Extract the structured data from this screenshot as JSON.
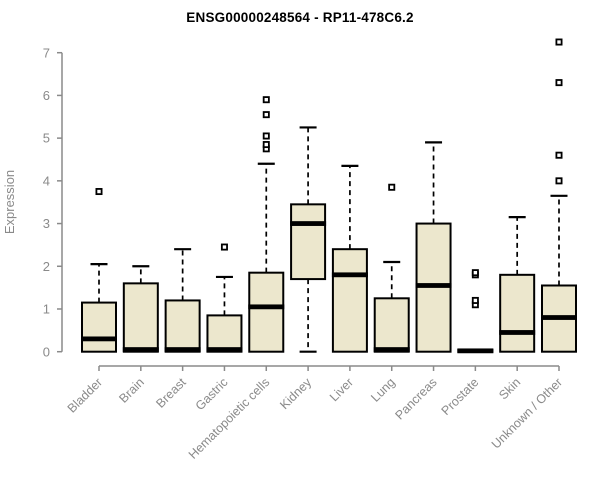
{
  "title": "ENSG00000248564 - RP11-478C6.2",
  "chart_data": {
    "type": "boxplot",
    "title": "ENSG00000248564 - RP11-478C6.2",
    "xlabel": "",
    "ylabel": "Expression",
    "ylim": [
      0,
      7
    ],
    "yticks": [
      0,
      1,
      2,
      3,
      4,
      5,
      6,
      7
    ],
    "grid": false,
    "legend": "none",
    "categories": [
      "Bladder",
      "Brain",
      "Breast",
      "Gastric",
      "Hematopoietic cells",
      "Kidney",
      "Liver",
      "Lung",
      "Pancreas",
      "Prostate",
      "Skin",
      "Unknown / Other"
    ],
    "series": [
      {
        "name": "Bladder",
        "whisker_low": 0,
        "q1": 0,
        "median": 0.3,
        "q3": 1.15,
        "whisker_high": 2.05,
        "outliers": [
          3.75
        ]
      },
      {
        "name": "Brain",
        "whisker_low": 0,
        "q1": 0,
        "median": 0.05,
        "q3": 1.6,
        "whisker_high": 2.0,
        "outliers": []
      },
      {
        "name": "Breast",
        "whisker_low": 0,
        "q1": 0,
        "median": 0.05,
        "q3": 1.2,
        "whisker_high": 2.4,
        "outliers": []
      },
      {
        "name": "Gastric",
        "whisker_low": 0,
        "q1": 0,
        "median": 0.05,
        "q3": 0.85,
        "whisker_high": 1.75,
        "outliers": [
          2.45
        ]
      },
      {
        "name": "Hematopoietic cells",
        "whisker_low": 0,
        "q1": 0,
        "median": 1.05,
        "q3": 1.85,
        "whisker_high": 4.4,
        "outliers": [
          4.75,
          4.85,
          5.05,
          5.55,
          5.9
        ]
      },
      {
        "name": "Kidney",
        "whisker_low": 0,
        "q1": 1.7,
        "median": 3.0,
        "q3": 3.45,
        "whisker_high": 5.25,
        "outliers": []
      },
      {
        "name": "Liver",
        "whisker_low": 0,
        "q1": 0,
        "median": 1.8,
        "q3": 2.4,
        "whisker_high": 4.35,
        "outliers": []
      },
      {
        "name": "Lung",
        "whisker_low": 0,
        "q1": 0,
        "median": 0.05,
        "q3": 1.25,
        "whisker_high": 2.1,
        "outliers": [
          3.85
        ]
      },
      {
        "name": "Pancreas",
        "whisker_low": 0,
        "q1": 0,
        "median": 1.55,
        "q3": 3.0,
        "whisker_high": 4.9,
        "outliers": []
      },
      {
        "name": "Prostate",
        "whisker_low": 0,
        "q1": 0,
        "median": 0.02,
        "q3": 0.04,
        "whisker_high": 0.04,
        "outliers": [
          1.1,
          1.2,
          1.8,
          1.85
        ]
      },
      {
        "name": "Skin",
        "whisker_low": 0,
        "q1": 0,
        "median": 0.45,
        "q3": 1.8,
        "whisker_high": 3.15,
        "outliers": []
      },
      {
        "name": "Unknown / Other",
        "whisker_low": 0,
        "q1": 0,
        "median": 0.8,
        "q3": 1.55,
        "whisker_high": 3.65,
        "outliers": [
          4.0,
          4.6,
          6.3,
          7.25
        ]
      }
    ],
    "colors": {
      "box_fill": "#ECE7CD",
      "box_border": "#000000",
      "median": "#000000",
      "whisker": "#000000",
      "outlier_stroke": "#000000",
      "outlier_fill": "#ffffff",
      "axis": "#8a8a8a",
      "tick_label": "#8a8a8a",
      "title": "#000000"
    }
  }
}
